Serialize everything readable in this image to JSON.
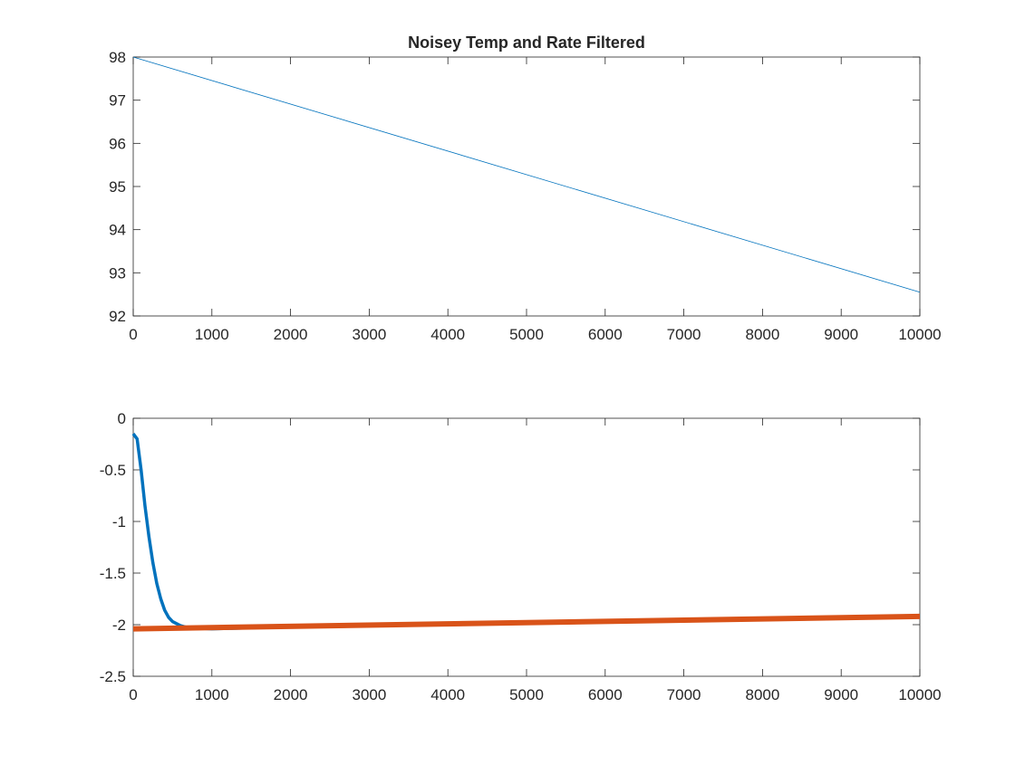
{
  "chart_data": [
    {
      "type": "line",
      "title": "Noisey Temp and Rate Filtered",
      "xlabel": "",
      "ylabel": "",
      "xlim": [
        0,
        10000
      ],
      "ylim": [
        92,
        98
      ],
      "xticks": [
        0,
        1000,
        2000,
        3000,
        4000,
        5000,
        6000,
        7000,
        8000,
        9000,
        10000
      ],
      "yticks": [
        92,
        93,
        94,
        95,
        96,
        97,
        98
      ],
      "xtick_labels": [
        "0",
        "1000",
        "2000",
        "3000",
        "4000",
        "5000",
        "6000",
        "7000",
        "8000",
        "9000",
        "10000"
      ],
      "ytick_labels": [
        "92",
        "93",
        "94",
        "95",
        "96",
        "97",
        "98"
      ],
      "grid": false,
      "series": [
        {
          "color": "#0072BD",
          "x": [
            0,
            10000
          ],
          "y": [
            98.0,
            92.55
          ]
        }
      ]
    },
    {
      "type": "line",
      "title": "",
      "xlabel": "",
      "ylabel": "",
      "xlim": [
        0,
        10000
      ],
      "ylim": [
        -2.5,
        0
      ],
      "xticks": [
        0,
        1000,
        2000,
        3000,
        4000,
        5000,
        6000,
        7000,
        8000,
        9000,
        10000
      ],
      "yticks": [
        -2.5,
        -2,
        -1.5,
        -1,
        -0.5,
        0
      ],
      "xtick_labels": [
        "0",
        "1000",
        "2000",
        "3000",
        "4000",
        "5000",
        "6000",
        "7000",
        "8000",
        "9000",
        "10000"
      ],
      "ytick_labels": [
        "-2.5",
        "-2",
        "-1.5",
        "-1",
        "-0.5",
        "0"
      ],
      "grid": false,
      "series": [
        {
          "color": "#0072BD",
          "x": [
            0,
            50,
            100,
            150,
            200,
            250,
            300,
            350,
            400,
            450,
            500,
            600,
            700,
            1000,
            2000,
            3000,
            4000,
            5000,
            6000,
            7000,
            8000,
            9000,
            10000
          ],
          "y": [
            -0.15,
            -0.2,
            -0.5,
            -0.85,
            -1.15,
            -1.4,
            -1.6,
            -1.75,
            -1.86,
            -1.93,
            -1.97,
            -2.01,
            -2.03,
            -2.04,
            -2.02,
            -2.0,
            -1.99,
            -1.98,
            -1.97,
            -1.96,
            -1.95,
            -1.93,
            -1.92
          ]
        },
        {
          "color": "#D95319",
          "x": [
            0,
            10000
          ],
          "y": [
            -2.04,
            -1.92
          ]
        }
      ]
    }
  ]
}
